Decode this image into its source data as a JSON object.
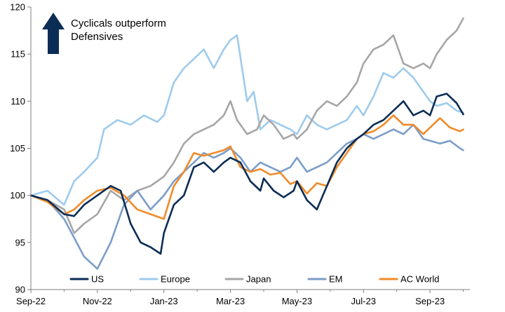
{
  "chart_data": {
    "type": "line",
    "annotation": {
      "lines": [
        "Cyclicals outperform",
        "Defensives"
      ],
      "icon": "up-arrow-icon",
      "color": "#0b2d55"
    },
    "x_tick_labels": [
      "Sep-22",
      "Nov-22",
      "Jan-23",
      "Mar-23",
      "May-23",
      "Jul-23",
      "Sep-23"
    ],
    "x_tick_months": [
      0,
      2,
      4,
      6,
      8,
      10,
      12
    ],
    "x_range_months": [
      0,
      13.2
    ],
    "ylim": [
      90,
      120
    ],
    "y_ticks": [
      90,
      95,
      100,
      105,
      110,
      115,
      120
    ],
    "grid": false,
    "legend_position": "bottom",
    "series": [
      {
        "name": "US",
        "color": "#0b2d55",
        "x": [
          0,
          0.5,
          1.0,
          1.3,
          1.6,
          2.0,
          2.4,
          2.7,
          3.0,
          3.3,
          3.6,
          3.9,
          4.0,
          4.3,
          4.6,
          4.9,
          5.2,
          5.5,
          5.8,
          6.0,
          6.3,
          6.6,
          6.9,
          7.0,
          7.3,
          7.6,
          7.9,
          8.0,
          8.3,
          8.6,
          8.9,
          9.2,
          9.5,
          9.8,
          10.0,
          10.3,
          10.6,
          10.9,
          11.2,
          11.5,
          11.8,
          12.0,
          12.2,
          12.5,
          12.8,
          13.0
        ],
        "y": [
          100,
          99.5,
          98,
          97.8,
          99,
          100,
          101,
          100.5,
          97,
          95,
          94.5,
          93.8,
          96,
          99,
          100,
          103,
          103.5,
          102.5,
          103.5,
          104,
          103.5,
          101.5,
          100.5,
          101.8,
          100.5,
          99.8,
          100.5,
          101.5,
          99.5,
          98.5,
          101,
          103.5,
          105,
          106,
          106.5,
          107.5,
          108,
          109,
          110,
          108.5,
          109,
          108.5,
          110.5,
          110.8,
          109.8,
          108.6
        ]
      },
      {
        "name": "Europe",
        "color": "#9fcbec",
        "x": [
          0,
          0.5,
          1.0,
          1.3,
          1.6,
          2.0,
          2.2,
          2.6,
          3.0,
          3.4,
          3.8,
          4.0,
          4.3,
          4.6,
          4.9,
          5.2,
          5.5,
          5.8,
          6.0,
          6.2,
          6.5,
          6.7,
          6.9,
          7.2,
          7.5,
          7.8,
          8.0,
          8.3,
          8.6,
          8.9,
          9.2,
          9.5,
          9.8,
          10.0,
          10.3,
          10.6,
          10.9,
          11.2,
          11.5,
          11.8,
          12.0,
          12.2,
          12.5,
          12.8,
          13.0
        ],
        "y": [
          100,
          100.5,
          99,
          101.5,
          102.5,
          104,
          107,
          108,
          107.5,
          108.5,
          107.8,
          108.5,
          112,
          113.5,
          114.5,
          115.5,
          113.5,
          115.5,
          116.5,
          117,
          110,
          111,
          107,
          108,
          107.5,
          107,
          106.5,
          108.5,
          107.5,
          107,
          107.5,
          108,
          109.5,
          108.5,
          110.5,
          113,
          112.5,
          113.5,
          112.5,
          111,
          110,
          109.5,
          109.8,
          109,
          108.8
        ]
      },
      {
        "name": "Japan",
        "color": "#a6a6a6",
        "x": [
          0,
          0.5,
          1.0,
          1.3,
          1.6,
          2.0,
          2.4,
          2.8,
          3.2,
          3.6,
          4.0,
          4.3,
          4.6,
          4.9,
          5.2,
          5.5,
          5.8,
          6.0,
          6.2,
          6.5,
          6.8,
          7.0,
          7.3,
          7.6,
          7.9,
          8.0,
          8.3,
          8.6,
          8.9,
          9.2,
          9.5,
          9.8,
          10.0,
          10.3,
          10.6,
          10.9,
          11.2,
          11.5,
          11.8,
          12.0,
          12.2,
          12.5,
          12.8,
          13.0
        ],
        "y": [
          100,
          99.5,
          98.5,
          96,
          97,
          98,
          100.5,
          99.5,
          100.5,
          101,
          102,
          103.5,
          105.5,
          106.5,
          107,
          107.5,
          108.5,
          110,
          108,
          106.5,
          107,
          108.5,
          107.5,
          106,
          106.5,
          106,
          107,
          109,
          110,
          109.5,
          110.5,
          112,
          114,
          115.5,
          116,
          117,
          114,
          113.5,
          114,
          113.5,
          115,
          116.5,
          117.5,
          118.8
        ]
      },
      {
        "name": "EM",
        "color": "#7b9ec8",
        "x": [
          0,
          0.5,
          1.0,
          1.3,
          1.6,
          2.0,
          2.4,
          2.8,
          3.2,
          3.6,
          4.0,
          4.3,
          4.6,
          4.9,
          5.2,
          5.5,
          5.8,
          6.0,
          6.3,
          6.6,
          6.9,
          7.2,
          7.5,
          7.8,
          8.0,
          8.3,
          8.6,
          8.9,
          9.2,
          9.5,
          9.8,
          10.0,
          10.3,
          10.6,
          10.9,
          11.2,
          11.5,
          11.8,
          12.0,
          12.3,
          12.6,
          12.9,
          13.0
        ],
        "y": [
          100,
          99.5,
          97.5,
          95.5,
          93.5,
          92.2,
          95,
          99,
          100.5,
          98.5,
          100,
          101.5,
          102.5,
          103.5,
          104.5,
          104,
          104.5,
          105,
          104,
          102.5,
          103.5,
          103,
          102.5,
          103,
          104,
          102.5,
          103,
          103.5,
          104.5,
          105.5,
          106,
          106.5,
          106,
          106.5,
          107,
          106.5,
          107.5,
          106,
          105.8,
          105.5,
          105.8,
          105,
          104.8
        ]
      },
      {
        "name": "AC World",
        "color": "#f08b2a",
        "x": [
          0,
          0.5,
          1.0,
          1.3,
          1.6,
          2.0,
          2.4,
          2.8,
          3.2,
          3.6,
          4.0,
          4.3,
          4.6,
          4.9,
          5.2,
          5.5,
          5.8,
          6.0,
          6.3,
          6.6,
          6.9,
          7.2,
          7.5,
          7.8,
          8.0,
          8.3,
          8.6,
          8.9,
          9.2,
          9.5,
          9.8,
          10.0,
          10.3,
          10.6,
          10.9,
          11.2,
          11.5,
          11.8,
          12.0,
          12.3,
          12.6,
          12.9,
          13.0
        ],
        "y": [
          100,
          99.3,
          98,
          98.5,
          99.5,
          100.5,
          100.8,
          100,
          98.5,
          98,
          97.5,
          101,
          102.5,
          104.5,
          104.2,
          104.5,
          104.8,
          105.2,
          103,
          102.5,
          102.8,
          102.2,
          102.4,
          101.2,
          101.5,
          100.2,
          101.3,
          101,
          103,
          104.5,
          106,
          106.5,
          106.8,
          107.5,
          108.5,
          107.5,
          107.5,
          106.5,
          107.2,
          108.2,
          107.2,
          106.8,
          107
        ]
      }
    ]
  }
}
